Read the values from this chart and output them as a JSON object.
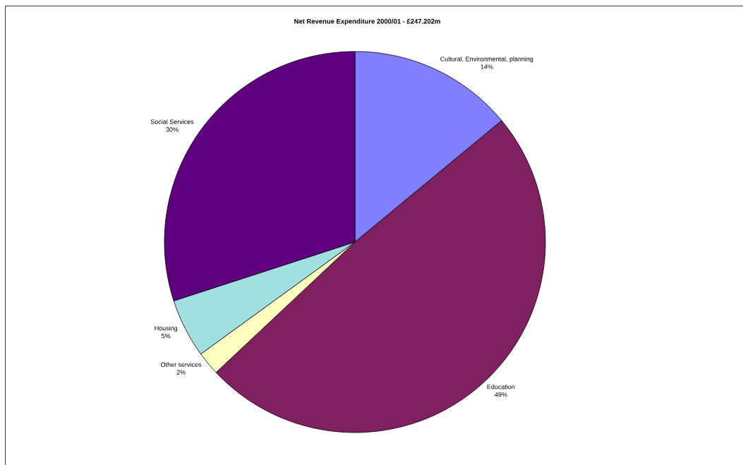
{
  "chart_data": {
    "type": "pie",
    "title": "Net Revenue Expenditure 2000/01 - £247.202m",
    "categories": [
      "Cultural, Environmental, planning",
      "Education",
      "Other services",
      "Housing",
      "Social  Services"
    ],
    "values": [
      14,
      49,
      2,
      5,
      30
    ],
    "value_labels": [
      "14%",
      "49%",
      "2%",
      "5%",
      "30%"
    ],
    "colors": [
      "#8080ff",
      "#802060",
      "#ffffc0",
      "#a0e0e0",
      "#600080"
    ],
    "legend": false
  }
}
